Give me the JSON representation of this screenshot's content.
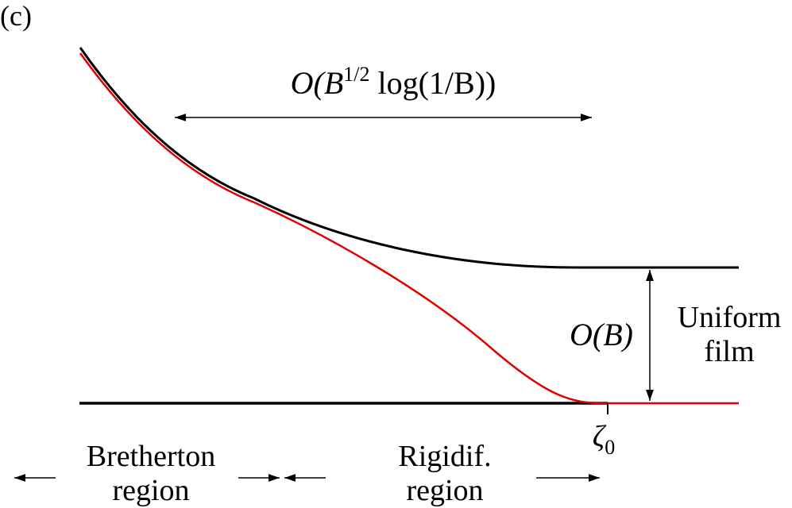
{
  "panel_label": "(c)",
  "top_label": {
    "base": "O(B",
    "sup": "1/2",
    "rest": " log(1/B))"
  },
  "gap_label": "O(B)",
  "right_label": [
    "Uniform",
    "film"
  ],
  "zeta_label": {
    "base": "ζ",
    "sub": "0"
  },
  "bottom_labels": [
    [
      "Bretherton",
      "region"
    ],
    [
      "Rigidif.",
      "region"
    ]
  ]
}
